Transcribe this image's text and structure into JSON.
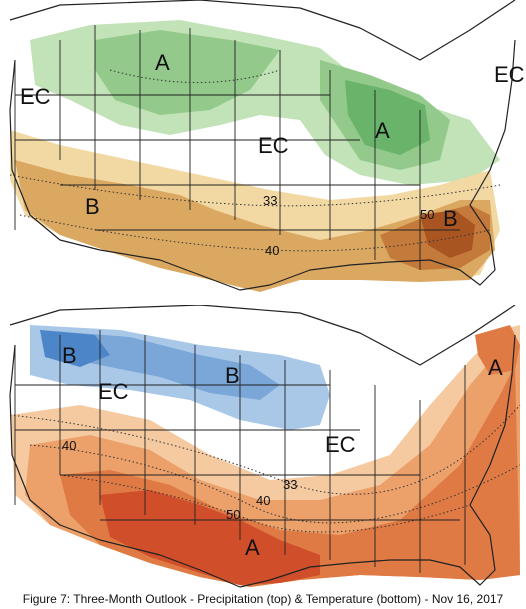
{
  "precipitation_map": {
    "labels": {
      "above_north": "A",
      "above_great_lakes": "A",
      "below_southwest": "B",
      "below_southeast": "B",
      "ec_west": "EC",
      "ec_central": "EC",
      "ec_northeast": "EC"
    },
    "contours": {
      "c33": "33",
      "c40": "40",
      "c50": "50"
    },
    "colors": {
      "above_light": "#c2e2b8",
      "above_mid": "#93c98a",
      "above_dark": "#6ab36a",
      "below_light": "#f2d9a4",
      "below_mid": "#dba862",
      "below_dark": "#c47a3a",
      "below_darkest": "#a95522"
    }
  },
  "temperature_map": {
    "labels": {
      "below_northwest": "B",
      "below_north_plains": "B",
      "above_northeast": "A",
      "above_southwest": "A",
      "ec_west": "EC",
      "ec_central": "EC"
    },
    "contours": {
      "c40": "40",
      "c33": "33",
      "c40_south": "40",
      "c50": "50"
    },
    "colors": {
      "below_light": "#a9c8e8",
      "below_mid": "#7aa6d8",
      "below_dark": "#4d86c8",
      "above_light": "#f5caa0",
      "above_mid": "#eca06a",
      "above_dark": "#e07a45",
      "above_darkest": "#d04e2a"
    }
  },
  "caption": "Figure 7: Three-Month Outlook - Precipitation (top) & Temperature (bottom) - Nov 16, 2017"
}
